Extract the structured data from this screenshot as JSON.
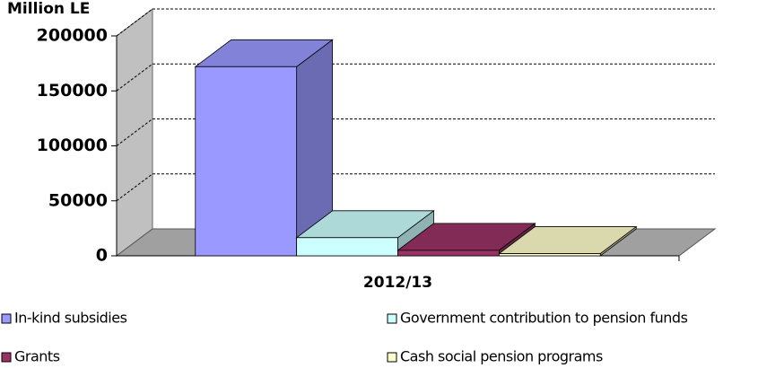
{
  "chart_data": {
    "type": "bar3d",
    "y_label": "Million LE",
    "categories": [
      "2012/13"
    ],
    "series": [
      {
        "name": "In-kind subsidies",
        "color": "#9999ff",
        "values": [
          172000
        ]
      },
      {
        "name": "Government contribution to pension funds",
        "color": "#ccffff",
        "values": [
          16500
        ]
      },
      {
        "name": "Grants",
        "color": "#993366",
        "values": [
          5000
        ]
      },
      {
        "name": "Cash social pension programs",
        "color": "#ffffcc",
        "values": [
          2000
        ]
      }
    ],
    "ylim": [
      0,
      200000
    ],
    "yticks": [
      0,
      50000,
      100000,
      150000,
      200000
    ],
    "grid": true
  }
}
